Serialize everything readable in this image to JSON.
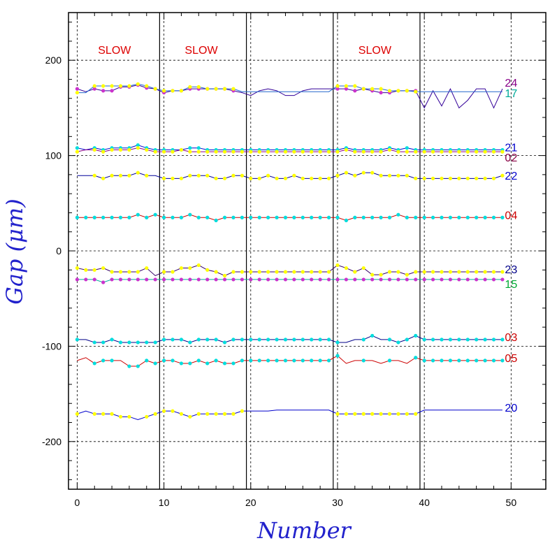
{
  "chart_data": {
    "type": "line",
    "title": "",
    "xlabel": "Number",
    "ylabel": "Gap (μm)",
    "xlim": [
      -1,
      54
    ],
    "ylim": [
      -250,
      250
    ],
    "x_ticks": [
      0,
      10,
      20,
      30,
      40,
      50
    ],
    "y_ticks": [
      -200,
      -100,
      0,
      100,
      200
    ],
    "grid": true,
    "vertical_lines": [
      9.5,
      19.5,
      29.5,
      39.5
    ],
    "regions": [
      {
        "label": "SLOW",
        "x": 4.3
      },
      {
        "label": "SLOW",
        "x": 14.3
      },
      {
        "label": "SLOW",
        "x": 34.3
      }
    ],
    "series": [
      {
        "name": "24",
        "label_color": "#880088",
        "line_color": "#330099",
        "values": [
          170,
          167,
          170,
          168,
          168,
          172,
          172,
          174,
          171,
          170,
          166,
          168,
          168,
          170,
          170,
          170,
          170,
          170,
          168,
          166,
          163,
          168,
          170,
          168,
          163,
          163,
          168,
          170,
          170,
          170,
          170,
          170,
          168,
          170,
          168,
          166,
          166,
          168,
          168,
          168,
          150,
          168,
          152,
          170,
          150,
          158,
          170,
          170,
          150,
          170
        ]
      },
      {
        "name": "17",
        "label_color": "#00aa99",
        "line_color": "#2266cc",
        "values": [
          166,
          166,
          173,
          173,
          173,
          173,
          173,
          175,
          173,
          170,
          168,
          168,
          168,
          172,
          172,
          170,
          170,
          170,
          170,
          167,
          167,
          167,
          167,
          167,
          167,
          167,
          167,
          167,
          167,
          167,
          173,
          173,
          173,
          170,
          170,
          170,
          168,
          168,
          168,
          167,
          167,
          167,
          167,
          167,
          167,
          167,
          167,
          167,
          167,
          167
        ]
      },
      {
        "name": "21",
        "label_color": "#0000cc",
        "line_color": "#0000cc",
        "values": [
          108,
          106,
          108,
          106,
          108,
          108,
          108,
          111,
          108,
          106,
          106,
          106,
          106,
          108,
          108,
          106,
          106,
          106,
          106,
          106,
          106,
          106,
          106,
          106,
          106,
          106,
          106,
          106,
          106,
          106,
          106,
          108,
          106,
          106,
          106,
          106,
          108,
          106,
          108,
          106,
          106,
          106,
          106,
          106,
          106,
          106,
          106,
          106,
          106,
          106
        ]
      },
      {
        "name": "02",
        "label_color": "#880044",
        "line_color": "#880088",
        "values": [
          104,
          106,
          106,
          104,
          106,
          106,
          106,
          108,
          106,
          104,
          104,
          104,
          106,
          104,
          104,
          104,
          104,
          104,
          104,
          104,
          104,
          104,
          104,
          104,
          104,
          104,
          104,
          104,
          104,
          104,
          104,
          106,
          104,
          104,
          104,
          104,
          106,
          104,
          104,
          104,
          104,
          104,
          104,
          104,
          104,
          104,
          104,
          104,
          104,
          104
        ]
      },
      {
        "name": "22",
        "label_color": "#0000cc",
        "line_color": "#000099",
        "values": [
          79,
          79,
          79,
          76,
          79,
          79,
          79,
          82,
          79,
          79,
          76,
          76,
          76,
          79,
          79,
          79,
          76,
          76,
          79,
          79,
          76,
          76,
          79,
          76,
          76,
          79,
          76,
          76,
          76,
          76,
          79,
          82,
          79,
          82,
          82,
          79,
          79,
          79,
          79,
          76,
          76,
          76,
          76,
          76,
          76,
          76,
          76,
          76,
          76,
          79
        ]
      },
      {
        "name": "04",
        "label_color": "#cc0000",
        "line_color": "#cc0000",
        "values": [
          35,
          35,
          35,
          35,
          35,
          35,
          35,
          38,
          35,
          38,
          35,
          35,
          35,
          38,
          35,
          35,
          32,
          35,
          35,
          35,
          35,
          35,
          35,
          35,
          35,
          35,
          35,
          35,
          35,
          35,
          35,
          32,
          35,
          35,
          35,
          35,
          35,
          38,
          35,
          35,
          35,
          35,
          35,
          35,
          35,
          35,
          35,
          35,
          35,
          35
        ]
      },
      {
        "name": "23",
        "label_color": "#000088",
        "line_color": "#330066",
        "values": [
          -18,
          -20,
          -20,
          -18,
          -22,
          -22,
          -22,
          -22,
          -18,
          -26,
          -22,
          -22,
          -18,
          -18,
          -15,
          -20,
          -22,
          -26,
          -22,
          -22,
          -22,
          -22,
          -22,
          -22,
          -22,
          -22,
          -22,
          -22,
          -22,
          -22,
          -15,
          -18,
          -22,
          -18,
          -25,
          -25,
          -22,
          -22,
          -25,
          -22,
          -22,
          -22,
          -22,
          -22,
          -22,
          -22,
          -22,
          -22,
          -22,
          -22
        ]
      },
      {
        "name": "15",
        "label_color": "#00aa33",
        "line_color": "#00aa99",
        "values": [
          -30,
          -30,
          -30,
          -33,
          -30,
          -30,
          -30,
          -30,
          -30,
          -30,
          -30,
          -30,
          -30,
          -30,
          -30,
          -30,
          -30,
          -30,
          -30,
          -30,
          -30,
          -30,
          -30,
          -30,
          -30,
          -30,
          -30,
          -30,
          -30,
          -30,
          -30,
          -30,
          -30,
          -30,
          -30,
          -30,
          -30,
          -30,
          -30,
          -30,
          -30,
          -30,
          -30,
          -30,
          -30,
          -30,
          -30,
          -30,
          -30,
          -30
        ]
      },
      {
        "name": "03",
        "label_color": "#cc0000",
        "line_color": "#000088",
        "values": [
          -93,
          -93,
          -96,
          -96,
          -93,
          -96,
          -96,
          -96,
          -96,
          -96,
          -93,
          -93,
          -93,
          -96,
          -93,
          -93,
          -93,
          -96,
          -93,
          -93,
          -93,
          -93,
          -93,
          -93,
          -93,
          -93,
          -93,
          -93,
          -93,
          -93,
          -96,
          -96,
          -93,
          -93,
          -89,
          -93,
          -93,
          -96,
          -93,
          -89,
          -93,
          -93,
          -93,
          -93,
          -93,
          -93,
          -93,
          -93,
          -93,
          -93
        ]
      },
      {
        "name": "05",
        "label_color": "#cc0000",
        "line_color": "#cc0000",
        "values": [
          -115,
          -112,
          -118,
          -115,
          -115,
          -115,
          -121,
          -121,
          -115,
          -118,
          -115,
          -115,
          -118,
          -118,
          -115,
          -118,
          -115,
          -118,
          -118,
          -115,
          -115,
          -115,
          -115,
          -115,
          -115,
          -115,
          -115,
          -115,
          -115,
          -115,
          -110,
          -118,
          -115,
          -115,
          -115,
          -118,
          -115,
          -115,
          -118,
          -112,
          -115,
          -115,
          -115,
          -115,
          -115,
          -115,
          -115,
          -115,
          -115,
          -115
        ]
      },
      {
        "name": "20",
        "label_color": "#0000cc",
        "line_color": "#0000cc",
        "values": [
          -171,
          -168,
          -171,
          -171,
          -171,
          -174,
          -174,
          -177,
          -174,
          -171,
          -168,
          -168,
          -171,
          -174,
          -171,
          -171,
          -171,
          -171,
          -171,
          -168,
          -168,
          -168,
          -168,
          -167,
          -167,
          -167,
          -167,
          -167,
          -167,
          -167,
          -171,
          -171,
          -171,
          -171,
          -171,
          -171,
          -171,
          -171,
          -171,
          -171,
          -167,
          -167,
          -167,
          -167,
          -167,
          -167,
          -167,
          -167,
          -167,
          -167
        ]
      }
    ],
    "marker_indices": {
      "24": [
        0,
        2,
        3,
        4,
        5,
        6,
        7,
        8,
        9,
        10,
        11,
        12,
        13,
        14,
        15,
        16,
        17,
        18,
        30,
        31,
        32,
        33,
        34,
        35,
        36,
        37,
        38,
        39
      ],
      "17": [
        0,
        2,
        3,
        4,
        5,
        6,
        7,
        8,
        9,
        10,
        11,
        12,
        13,
        14,
        15,
        16,
        17,
        18,
        30,
        31,
        32,
        33,
        34,
        35,
        36,
        37,
        38,
        39
      ],
      "21": [
        0,
        2,
        3,
        4,
        5,
        6,
        7,
        8,
        9,
        10,
        11,
        12,
        13,
        14,
        15,
        16,
        17,
        18,
        19,
        20,
        21,
        22,
        23,
        24,
        25,
        26,
        27,
        28,
        29,
        30,
        31,
        32,
        33,
        34,
        35,
        36,
        37,
        38,
        39,
        40,
        41,
        42,
        43,
        44,
        45,
        46,
        47,
        48,
        49
      ],
      "02": [
        0,
        2,
        3,
        4,
        5,
        6,
        7,
        8,
        9,
        10,
        11,
        12,
        13,
        14,
        15,
        16,
        17,
        18,
        19,
        20,
        21,
        22,
        23,
        24,
        25,
        26,
        27,
        28,
        29,
        30,
        31,
        32,
        33,
        34,
        35,
        36,
        37,
        38,
        39,
        40,
        41,
        42,
        43,
        44,
        45,
        46,
        47,
        48,
        49
      ],
      "22": [
        2,
        3,
        4,
        5,
        6,
        7,
        8,
        10,
        11,
        12,
        13,
        14,
        15,
        16,
        17,
        18,
        19,
        20,
        21,
        22,
        23,
        24,
        25,
        26,
        27,
        28,
        29,
        30,
        31,
        32,
        33,
        34,
        35,
        36,
        37,
        38,
        39,
        40,
        41,
        42,
        43,
        44,
        45,
        46,
        47,
        48,
        49
      ],
      "04": [
        0,
        1,
        2,
        3,
        4,
        5,
        6,
        7,
        8,
        9,
        10,
        11,
        12,
        13,
        14,
        15,
        16,
        17,
        18,
        19,
        20,
        21,
        22,
        23,
        24,
        25,
        26,
        27,
        28,
        29,
        30,
        31,
        32,
        33,
        34,
        35,
        36,
        37,
        38,
        39,
        40,
        41,
        42,
        43,
        44,
        45,
        46,
        47,
        48,
        49
      ],
      "23": [
        0,
        1,
        2,
        3,
        4,
        5,
        6,
        7,
        8,
        10,
        11,
        12,
        13,
        14,
        15,
        16,
        17,
        18,
        19,
        20,
        21,
        22,
        23,
        24,
        25,
        26,
        27,
        28,
        29,
        30,
        31,
        32,
        33,
        34,
        35,
        36,
        37,
        38,
        39,
        40,
        41,
        42,
        43,
        44,
        45,
        46,
        47,
        48,
        49
      ],
      "15": [
        0,
        1,
        2,
        3,
        4,
        5,
        6,
        7,
        8,
        9,
        10,
        11,
        12,
        13,
        14,
        15,
        16,
        17,
        18,
        19,
        20,
        21,
        22,
        23,
        24,
        25,
        26,
        27,
        28,
        29,
        30,
        31,
        32,
        33,
        34,
        35,
        36,
        37,
        38,
        39,
        40,
        41,
        42,
        43,
        44,
        45,
        46,
        47,
        48,
        49
      ],
      "03": [
        0,
        2,
        3,
        4,
        5,
        6,
        7,
        8,
        9,
        10,
        11,
        12,
        13,
        14,
        15,
        16,
        17,
        18,
        19,
        20,
        21,
        22,
        23,
        24,
        25,
        26,
        27,
        28,
        29,
        30,
        33,
        34,
        36,
        37,
        38,
        39,
        40,
        41,
        42,
        43,
        44,
        45,
        46,
        47,
        48,
        49
      ],
      "05": [
        2,
        3,
        4,
        6,
        7,
        8,
        9,
        10,
        11,
        12,
        13,
        14,
        15,
        16,
        17,
        18,
        19,
        20,
        21,
        22,
        23,
        24,
        25,
        26,
        27,
        28,
        29,
        30,
        33,
        36,
        39,
        40,
        41,
        42,
        43,
        44,
        45,
        46,
        47,
        48,
        49
      ],
      "20": [
        0,
        2,
        3,
        4,
        5,
        6,
        8,
        9,
        10,
        11,
        12,
        13,
        14,
        15,
        16,
        17,
        18,
        19,
        30,
        31,
        32,
        33,
        34,
        35,
        36,
        37,
        38,
        39
      ]
    },
    "marker_colors": {
      "24": "#cc33cc",
      "17": "#ffff00",
      "21": "#00dddd",
      "02": "#ffff00",
      "22": "#ffff00",
      "04": "#00dddd",
      "23": "#ffff00",
      "15": "#cc33cc",
      "03": "#00dddd",
      "05": "#00dddd",
      "20": "#ffff00"
    }
  }
}
